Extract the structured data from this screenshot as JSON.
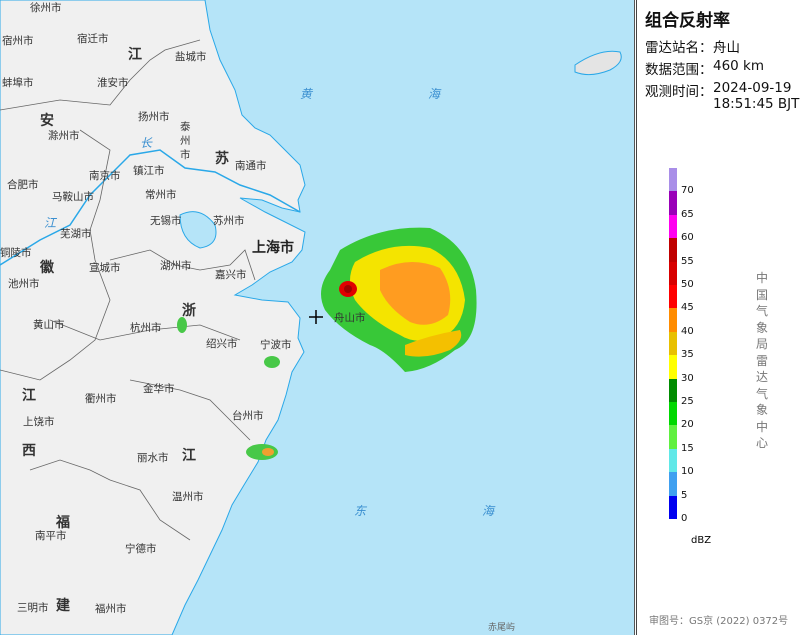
{
  "panel": {
    "title": "组合反射率",
    "station_label": "雷达站名：",
    "station_value": "舟山",
    "range_label": "数据范围：",
    "range_value": "460 km",
    "time_label": "观测时间：",
    "time_date": "2024-09-19",
    "time_clock": "18:51:45 BJT",
    "legend_unit": "dBZ",
    "legend_ticks": [
      "70",
      "65",
      "60",
      "55",
      "50",
      "45",
      "40",
      "35",
      "30",
      "25",
      "20",
      "15",
      "10",
      "5",
      "0"
    ],
    "legend_colors": [
      "#a98ee8",
      "#9a00b8",
      "#ff00f0",
      "#c00000",
      "#d80000",
      "#ff0000",
      "#ff8c00",
      "#e8c000",
      "#ffff00",
      "#008c00",
      "#00d800",
      "#60f040",
      "#60e8e8",
      "#40a0f0",
      "#0000f0"
    ],
    "credit": "中国气象局雷达气象中心",
    "approval": "审图号：GS京 (2022) 0372号"
  },
  "map": {
    "colors": {
      "sea": "#b5e4f8",
      "land": "#f0f0f0",
      "coast": "#2aa8e8",
      "border": "#555555"
    },
    "radar_site_icon": "crosshair-icon",
    "provinces": [
      "江",
      "苏",
      "安",
      "徽",
      "浙",
      "江",
      "江",
      "西",
      "福",
      "建"
    ],
    "municipality": "上海市",
    "seas": [
      "黄",
      "海",
      "东",
      "海",
      "长",
      "江"
    ],
    "cities": [
      "徐州市",
      "宿州市",
      "宿迁市",
      "盐城市",
      "蚌埠市",
      "淮安市",
      "扬州市",
      "泰州市",
      "滁州市",
      "南通市",
      "合肥市",
      "南京市",
      "镇江市",
      "马鞍山市",
      "常州市",
      "无锡市",
      "苏州市",
      "芜湖市",
      "铜陵市",
      "宣城市",
      "湖州市",
      "嘉兴市",
      "池州市",
      "黄山市",
      "杭州市",
      "绍兴市",
      "宁波市",
      "舟山市",
      "金华市",
      "衢州市",
      "上饶市",
      "台州市",
      "丽水市",
      "温州市",
      "南平市",
      "宁德市",
      "三明市",
      "福州市",
      "赤尾屿"
    ]
  }
}
